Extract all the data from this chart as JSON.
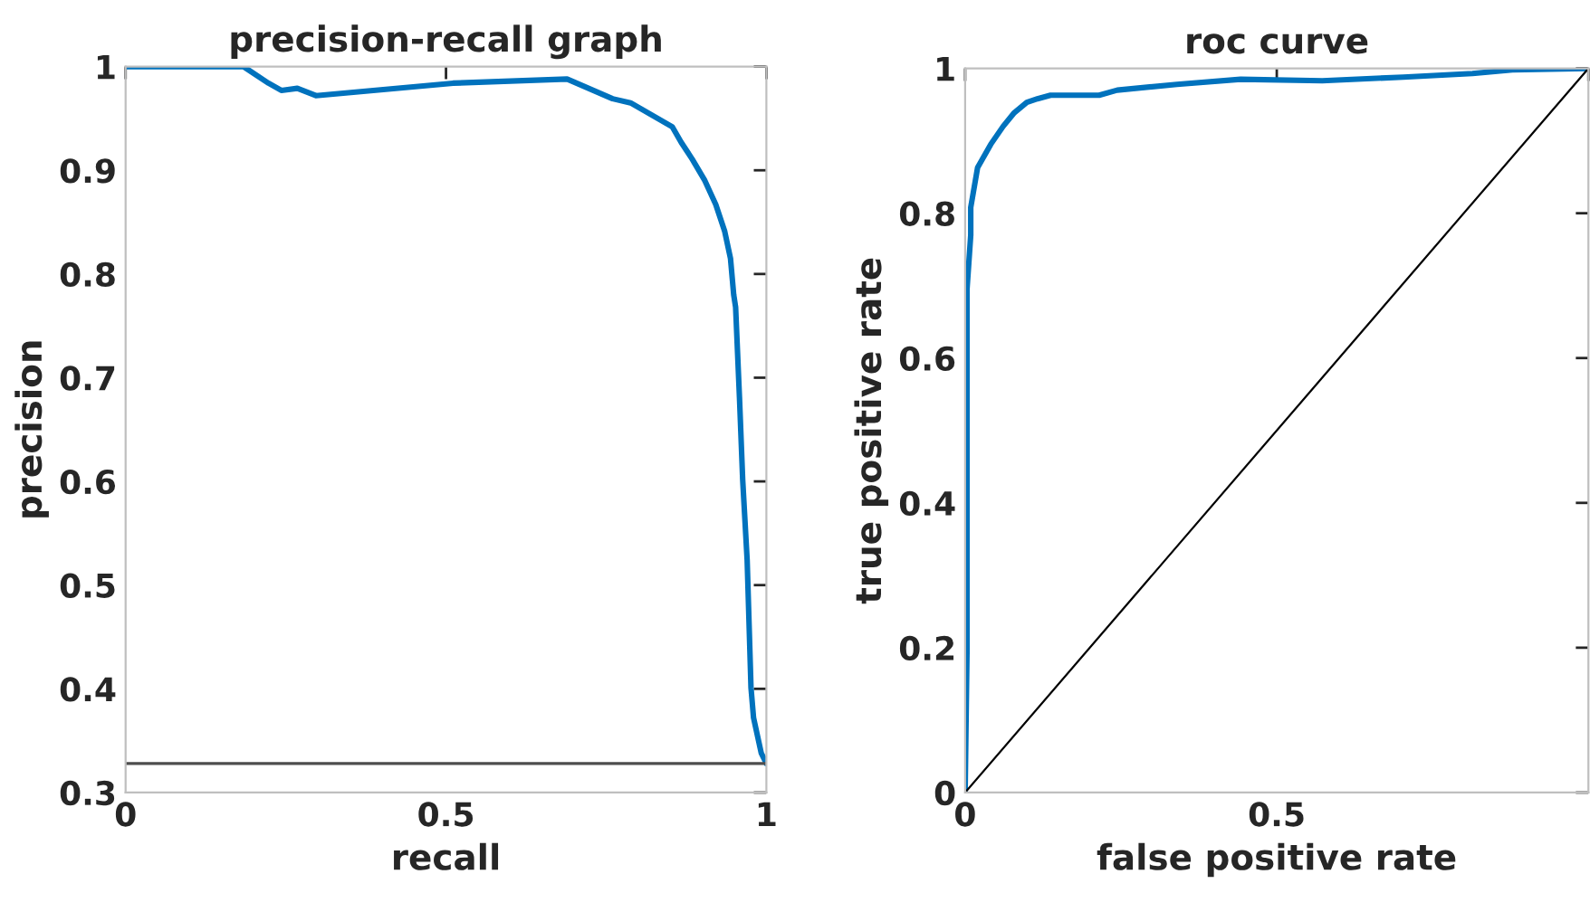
{
  "chart_data": [
    {
      "type": "line",
      "title": "precision-recall graph",
      "xlabel": "recall",
      "ylabel": "precision",
      "xlim": [
        0,
        1
      ],
      "ylim": [
        0.3,
        1
      ],
      "xticks": [
        0,
        0.5,
        1
      ],
      "yticks": [
        0.3,
        0.4,
        0.5,
        0.6,
        0.7,
        0.8,
        0.9,
        1
      ],
      "grid": false,
      "legend": false,
      "series": [
        {
          "color": "#0072bd",
          "x": [
            0,
            0.184,
            0.223,
            0.243,
            0.268,
            0.297,
            0.511,
            0.689,
            0.76,
            0.788,
            0.853,
            0.867,
            0.884,
            0.904,
            0.921,
            0.935,
            0.944,
            0.949,
            0.952,
            0.958,
            0.963,
            0.97,
            0.976,
            0.98,
            0.992,
            1
          ],
          "values": [
            1,
            1,
            0.984,
            0.977,
            0.979,
            0.972,
            0.984,
            0.988,
            0.969,
            0.965,
            0.942,
            0.927,
            0.911,
            0.89,
            0.867,
            0.841,
            0.815,
            0.78,
            0.768,
            0.681,
            0.602,
            0.524,
            0.401,
            0.372,
            0.338,
            0.328
          ]
        }
      ],
      "ref_lines": [
        {
          "axis": "y",
          "value": 0.328,
          "color": "#4d4d4d"
        }
      ]
    },
    {
      "type": "line",
      "title": "roc curve",
      "xlabel": "false positive rate",
      "ylabel": "true positive rate",
      "xlim": [
        0,
        1
      ],
      "ylim": [
        0,
        1
      ],
      "xticks": [
        0,
        0.5,
        {
          "value": 1,
          "label": null
        }
      ],
      "yticks": [
        0,
        0.2,
        0.4,
        0.6,
        0.8,
        1
      ],
      "grid": false,
      "legend": false,
      "series": [
        {
          "color": "#0072bd",
          "x": [
            0,
            0.003,
            0.003,
            0.009,
            0.009,
            0.02,
            0.041,
            0.061,
            0.078,
            0.099,
            0.116,
            0.137,
            0.215,
            0.244,
            0.34,
            0.442,
            0.573,
            0.703,
            0.814,
            0.878,
            1
          ],
          "values": [
            0,
            0.195,
            0.695,
            0.77,
            0.808,
            0.863,
            0.895,
            0.92,
            0.938,
            0.953,
            0.958,
            0.963,
            0.963,
            0.97,
            0.978,
            0.985,
            0.983,
            0.988,
            0.993,
            0.998,
            1
          ]
        },
        {
          "color": "#000000",
          "x": [
            0,
            1
          ],
          "values": [
            0,
            1
          ]
        }
      ]
    }
  ]
}
